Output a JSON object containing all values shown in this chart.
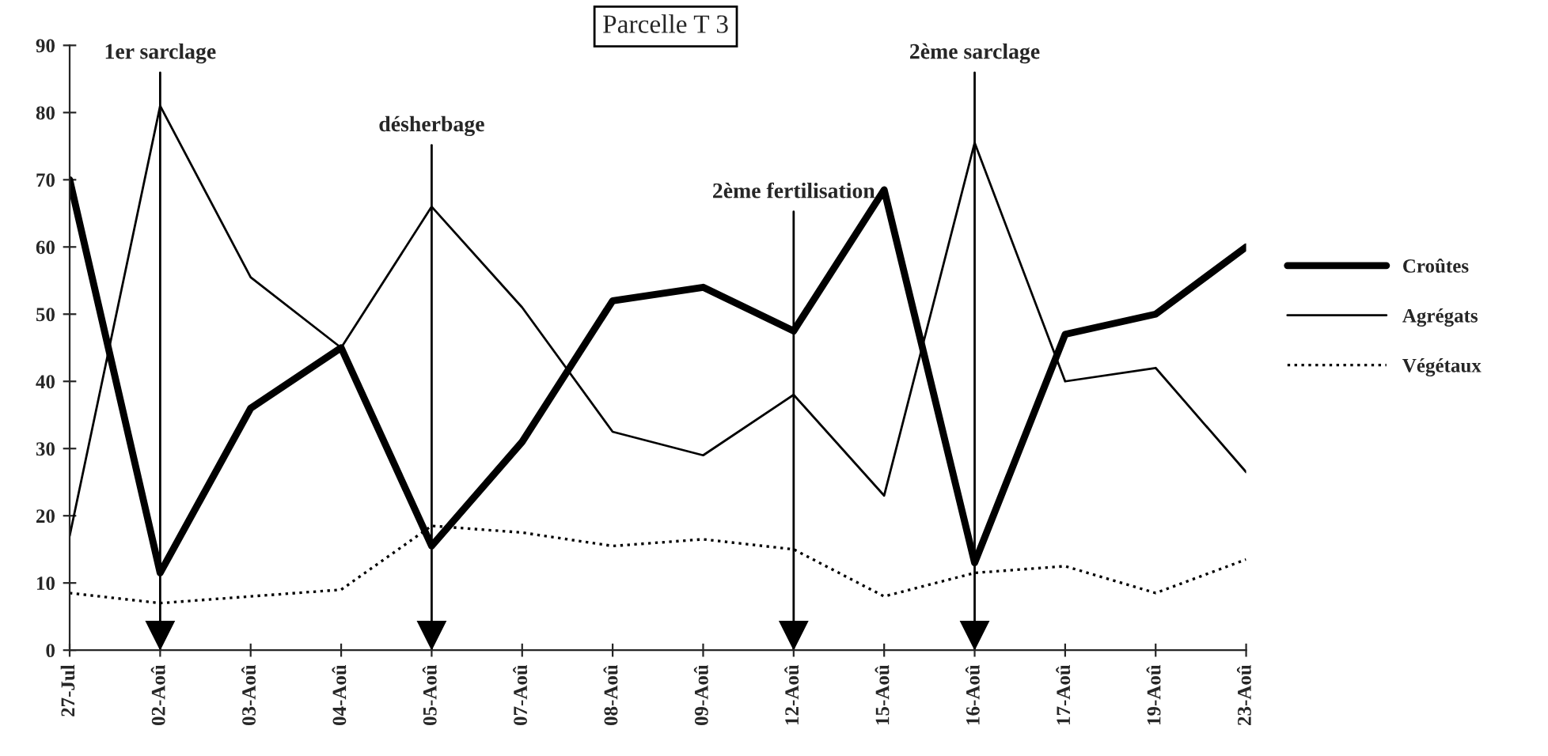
{
  "chart_data": {
    "type": "line",
    "title": "Parcelle T 3",
    "categories": [
      "27-Jul",
      "02-Aoû",
      "03-Aoû",
      "04-Aoû",
      "05-Aoû",
      "07-Aoû",
      "08-Aoû",
      "09-Aoû",
      "12-Aoû",
      "15-Aoû",
      "16-Aoû",
      "17-Aoû",
      "19-Aoû",
      "23-Aoû"
    ],
    "series": [
      {
        "name": "Croûtes",
        "color": "#000000",
        "line_style": "solid",
        "values": [
          70,
          11.5,
          36,
          45,
          15.5,
          31,
          52,
          54,
          47.5,
          68.5,
          13,
          47,
          50,
          60
        ]
      },
      {
        "name": "Agrégats",
        "color": "#000000",
        "line_style": "solid",
        "values": [
          17,
          81,
          55.5,
          45,
          66,
          51,
          32.5,
          29,
          38,
          23,
          75.5,
          40,
          42,
          26.5
        ]
      },
      {
        "name": "Végétaux",
        "color": "#000000",
        "line_style": "dotted",
        "values": [
          8.5,
          7,
          8,
          9,
          18.5,
          17.5,
          15.5,
          16.5,
          15,
          8,
          11.5,
          12.5,
          8.5,
          13.5
        ]
      }
    ],
    "ref_lines": [
      {
        "axis": "x",
        "value": "02-Aoû",
        "label": "1er sarclage"
      },
      {
        "axis": "x",
        "value": "05-Aoû",
        "label": "désherbage"
      },
      {
        "axis": "x",
        "value": "12-Aoû",
        "label": "2ème fertilisation"
      },
      {
        "axis": "x",
        "value": "16-Aoû",
        "label": "2ème sarclage"
      }
    ],
    "ylim": [
      0,
      90
    ],
    "yticks": [
      0,
      10,
      20,
      30,
      40,
      50,
      60,
      70,
      80,
      90
    ],
    "grid": false,
    "legend": "right",
    "marker": "none"
  }
}
